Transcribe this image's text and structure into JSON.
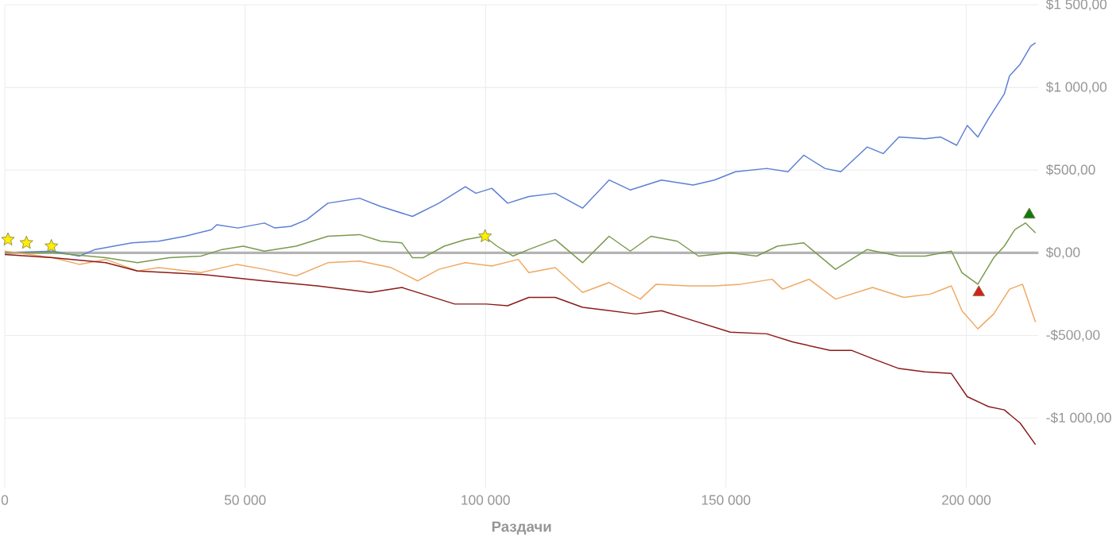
{
  "chart_data": {
    "type": "line",
    "xlabel": "Раздачи",
    "xlim": [
      0,
      215000
    ],
    "ylim": [
      -1420,
      1500
    ],
    "xticks": [
      0,
      {
        "value": 50000,
        "label": "50 000"
      },
      {
        "value": 100000,
        "label": "100 000"
      },
      {
        "value": 150000,
        "label": "150 000"
      },
      {
        "value": 200000,
        "label": "200 000"
      }
    ],
    "yticks": [
      {
        "value": -1000,
        "label": "-$1 000,00"
      },
      {
        "value": -500,
        "label": "-$500,00"
      },
      {
        "value": 0,
        "label": "$0,00"
      },
      {
        "value": 500,
        "label": "$500,00"
      },
      {
        "value": 1000,
        "label": "$1 000,00"
      },
      {
        "value": 1500,
        "label": "$1 500,00"
      }
    ],
    "grid": true,
    "line_style": "solid",
    "ref_lines": [
      {
        "axis": "y",
        "value": 0,
        "color": "#b4b4b4"
      }
    ],
    "series": [
      {
        "color": "#5b7fd6",
        "x": [
          0,
          10000,
          15500,
          18800,
          26500,
          32000,
          37500,
          43000,
          44100,
          48500,
          54000,
          56200,
          59500,
          62800,
          67200,
          73800,
          78200,
          84800,
          90300,
          95800,
          98000,
          101300,
          104600,
          109000,
          114500,
          120200,
          125700,
          130100,
          136600,
          143200,
          147600,
          152000,
          158500,
          162900,
          166200,
          170600,
          173900,
          179400,
          182700,
          186000,
          191400,
          194700,
          198000,
          200200,
          202400,
          204600,
          207900,
          209000,
          211200,
          213400,
          214400
        ],
        "values": [
          0,
          10,
          -20,
          20,
          60,
          70,
          100,
          140,
          170,
          150,
          180,
          150,
          160,
          200,
          300,
          330,
          280,
          220,
          300,
          400,
          360,
          390,
          300,
          340,
          360,
          270,
          440,
          380,
          440,
          410,
          440,
          490,
          510,
          490,
          590,
          510,
          490,
          640,
          600,
          700,
          690,
          700,
          650,
          770,
          700,
          810,
          960,
          1070,
          1140,
          1250,
          1270
        ]
      },
      {
        "color": "#7a9a4e",
        "x": [
          0,
          10000,
          21000,
          27600,
          34200,
          40800,
          45200,
          49600,
          54000,
          60600,
          67200,
          73800,
          78200,
          82600,
          84800,
          87000,
          91400,
          95800,
          99700,
          102400,
          105700,
          109000,
          114500,
          120200,
          125700,
          130100,
          134400,
          139900,
          144300,
          150900,
          156400,
          160700,
          166200,
          172800,
          179400,
          186000,
          191400,
          196900,
          199100,
          202400,
          205700,
          207900,
          210100,
          212300,
          214400
        ],
        "values": [
          0,
          0,
          -30,
          -60,
          -30,
          -20,
          20,
          40,
          10,
          40,
          100,
          110,
          70,
          60,
          -30,
          -30,
          40,
          80,
          100,
          40,
          -20,
          20,
          80,
          -60,
          100,
          10,
          100,
          70,
          -20,
          0,
          -20,
          40,
          60,
          -100,
          20,
          -20,
          -20,
          10,
          -120,
          -190,
          -30,
          40,
          140,
          180,
          120
        ]
      },
      {
        "color": "#f0a860",
        "x": [
          0,
          10000,
          15500,
          21000,
          27600,
          32000,
          40800,
          48300,
          54000,
          60600,
          67200,
          73800,
          80400,
          85900,
          90300,
          95800,
          101300,
          106800,
          109000,
          114500,
          120200,
          125700,
          132200,
          135500,
          142100,
          147600,
          153100,
          159600,
          161800,
          167300,
          172800,
          180500,
          187000,
          192500,
          196900,
          199100,
          202400,
          205700,
          209000,
          211700,
          214400
        ],
        "values": [
          10,
          -30,
          -70,
          -40,
          -110,
          -90,
          -120,
          -70,
          -100,
          -140,
          -60,
          -50,
          -90,
          -170,
          -100,
          -60,
          -80,
          -40,
          -120,
          -90,
          -240,
          -180,
          -280,
          -190,
          -200,
          -200,
          -190,
          -160,
          -220,
          -160,
          -280,
          -210,
          -270,
          -250,
          -200,
          -350,
          -460,
          -370,
          -220,
          -190,
          -420
        ]
      },
      {
        "color": "#8b1a1a",
        "x": [
          0,
          10000,
          21000,
          27600,
          40800,
          54000,
          65000,
          76000,
          82600,
          87000,
          93600,
          100200,
          104600,
          109000,
          114500,
          120200,
          125700,
          131200,
          136600,
          142100,
          150900,
          158500,
          164000,
          171700,
          176100,
          180500,
          186000,
          191400,
          196900,
          200200,
          204600,
          207900,
          211200,
          214400
        ],
        "values": [
          -10,
          -30,
          -60,
          -110,
          -130,
          -170,
          -200,
          -240,
          -210,
          -250,
          -310,
          -310,
          -320,
          -270,
          -270,
          -330,
          -350,
          -370,
          -350,
          -400,
          -480,
          -490,
          -540,
          -590,
          -590,
          -640,
          -700,
          -720,
          -730,
          -870,
          -930,
          -950,
          -1030,
          -1160
        ]
      },
      {
        "type": "scatter",
        "marker": "star",
        "color": "#ffee00",
        "x": [
          660,
          4500,
          9700,
          99900
        ],
        "values": [
          80,
          60,
          40,
          100
        ]
      },
      {
        "type": "scatter",
        "marker": "triangle",
        "color": "#0f7a0f",
        "x": [
          213100
        ],
        "values": [
          230
        ]
      },
      {
        "type": "scatter",
        "marker": "triangle",
        "color": "#d62020",
        "x": [
          202600
        ],
        "values": [
          -240
        ]
      }
    ]
  }
}
